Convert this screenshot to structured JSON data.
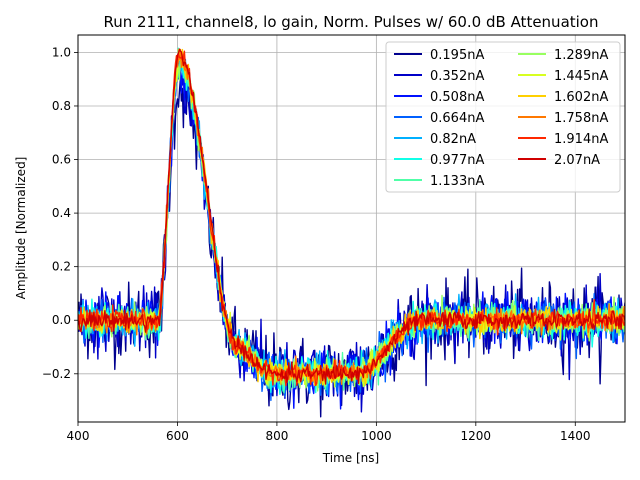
{
  "chart_data": {
    "type": "line",
    "title": "Run 2111, channel8, lo gain, Norm. Pulses w/ 60.0 dB Attenuation",
    "xlabel": "Time [ns]",
    "ylabel": "Amplitude [Normalized]",
    "xlim": [
      400,
      1500
    ],
    "ylim": [
      -0.38,
      1.065
    ],
    "xticks": [
      400,
      600,
      800,
      1000,
      1200,
      1400
    ],
    "yticks": [
      -0.2,
      0.0,
      0.2,
      0.4,
      0.6,
      0.8,
      1.0
    ],
    "xtick_labels": [
      "400",
      "600",
      "800",
      "1000",
      "1200",
      "1400"
    ],
    "ytick_labels": [
      "−0.2",
      "0.0",
      "0.2",
      "0.4",
      "0.6",
      "0.8",
      "1.0"
    ],
    "grid": true,
    "legend_position": "top-right",
    "legend_columns": 2,
    "pulse_shape": {
      "baseline": 0.0,
      "rise_start": 560,
      "peak_time": 603,
      "peak_value": 1.0,
      "undershoot_value": -0.2,
      "undershoot_start": 790,
      "undershoot_end": 960,
      "recovery_end": 1090
    },
    "series": [
      {
        "name": "0.195nA",
        "color": "#00008f",
        "noise": 0.07,
        "peak": 0.88
      },
      {
        "name": "0.352nA",
        "color": "#0000c8",
        "noise": 0.055,
        "peak": 0.91
      },
      {
        "name": "0.508nA",
        "color": "#0010ff",
        "noise": 0.045,
        "peak": 0.93
      },
      {
        "name": "0.664nA",
        "color": "#0060ff",
        "noise": 0.038,
        "peak": 0.94
      },
      {
        "name": "0.82nA",
        "color": "#00b0ff",
        "noise": 0.033,
        "peak": 0.95
      },
      {
        "name": "0.977nA",
        "color": "#10ffe8",
        "noise": 0.03,
        "peak": 0.96
      },
      {
        "name": "1.133nA",
        "color": "#50ffa8",
        "noise": 0.028,
        "peak": 0.97
      },
      {
        "name": "1.289nA",
        "color": "#98ff60",
        "noise": 0.026,
        "peak": 0.975
      },
      {
        "name": "1.445nA",
        "color": "#d8ff20",
        "noise": 0.024,
        "peak": 0.98
      },
      {
        "name": "1.602nA",
        "color": "#ffd000",
        "noise": 0.022,
        "peak": 0.985
      },
      {
        "name": "1.758nA",
        "color": "#ff7800",
        "noise": 0.02,
        "peak": 0.99
      },
      {
        "name": "1.914nA",
        "color": "#ff2800",
        "noise": 0.018,
        "peak": 0.995
      },
      {
        "name": "2.07nA",
        "color": "#d00000",
        "noise": 0.016,
        "peak": 1.0
      }
    ]
  }
}
